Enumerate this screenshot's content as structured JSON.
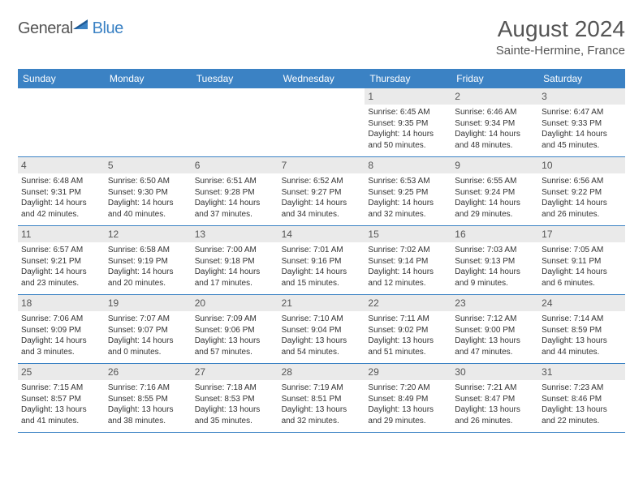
{
  "logo": {
    "text_general": "General",
    "text_blue": "Blue"
  },
  "title": "August 2024",
  "subtitle": "Sainte-Hermine, France",
  "colors": {
    "header_bg": "#3b82c4",
    "day_number_bg": "#eaeaea",
    "text_gray": "#555555",
    "text_dark": "#333333",
    "border": "#3b82c4",
    "logo_blue": "#3b82c4"
  },
  "day_names": [
    "Sunday",
    "Monday",
    "Tuesday",
    "Wednesday",
    "Thursday",
    "Friday",
    "Saturday"
  ],
  "weeks": [
    [
      null,
      null,
      null,
      null,
      {
        "n": "1",
        "sr": "6:45 AM",
        "ss": "9:35 PM",
        "dl": "14 hours and 50 minutes."
      },
      {
        "n": "2",
        "sr": "6:46 AM",
        "ss": "9:34 PM",
        "dl": "14 hours and 48 minutes."
      },
      {
        "n": "3",
        "sr": "6:47 AM",
        "ss": "9:33 PM",
        "dl": "14 hours and 45 minutes."
      }
    ],
    [
      {
        "n": "4",
        "sr": "6:48 AM",
        "ss": "9:31 PM",
        "dl": "14 hours and 42 minutes."
      },
      {
        "n": "5",
        "sr": "6:50 AM",
        "ss": "9:30 PM",
        "dl": "14 hours and 40 minutes."
      },
      {
        "n": "6",
        "sr": "6:51 AM",
        "ss": "9:28 PM",
        "dl": "14 hours and 37 minutes."
      },
      {
        "n": "7",
        "sr": "6:52 AM",
        "ss": "9:27 PM",
        "dl": "14 hours and 34 minutes."
      },
      {
        "n": "8",
        "sr": "6:53 AM",
        "ss": "9:25 PM",
        "dl": "14 hours and 32 minutes."
      },
      {
        "n": "9",
        "sr": "6:55 AM",
        "ss": "9:24 PM",
        "dl": "14 hours and 29 minutes."
      },
      {
        "n": "10",
        "sr": "6:56 AM",
        "ss": "9:22 PM",
        "dl": "14 hours and 26 minutes."
      }
    ],
    [
      {
        "n": "11",
        "sr": "6:57 AM",
        "ss": "9:21 PM",
        "dl": "14 hours and 23 minutes."
      },
      {
        "n": "12",
        "sr": "6:58 AM",
        "ss": "9:19 PM",
        "dl": "14 hours and 20 minutes."
      },
      {
        "n": "13",
        "sr": "7:00 AM",
        "ss": "9:18 PM",
        "dl": "14 hours and 17 minutes."
      },
      {
        "n": "14",
        "sr": "7:01 AM",
        "ss": "9:16 PM",
        "dl": "14 hours and 15 minutes."
      },
      {
        "n": "15",
        "sr": "7:02 AM",
        "ss": "9:14 PM",
        "dl": "14 hours and 12 minutes."
      },
      {
        "n": "16",
        "sr": "7:03 AM",
        "ss": "9:13 PM",
        "dl": "14 hours and 9 minutes."
      },
      {
        "n": "17",
        "sr": "7:05 AM",
        "ss": "9:11 PM",
        "dl": "14 hours and 6 minutes."
      }
    ],
    [
      {
        "n": "18",
        "sr": "7:06 AM",
        "ss": "9:09 PM",
        "dl": "14 hours and 3 minutes."
      },
      {
        "n": "19",
        "sr": "7:07 AM",
        "ss": "9:07 PM",
        "dl": "14 hours and 0 minutes."
      },
      {
        "n": "20",
        "sr": "7:09 AM",
        "ss": "9:06 PM",
        "dl": "13 hours and 57 minutes."
      },
      {
        "n": "21",
        "sr": "7:10 AM",
        "ss": "9:04 PM",
        "dl": "13 hours and 54 minutes."
      },
      {
        "n": "22",
        "sr": "7:11 AM",
        "ss": "9:02 PM",
        "dl": "13 hours and 51 minutes."
      },
      {
        "n": "23",
        "sr": "7:12 AM",
        "ss": "9:00 PM",
        "dl": "13 hours and 47 minutes."
      },
      {
        "n": "24",
        "sr": "7:14 AM",
        "ss": "8:59 PM",
        "dl": "13 hours and 44 minutes."
      }
    ],
    [
      {
        "n": "25",
        "sr": "7:15 AM",
        "ss": "8:57 PM",
        "dl": "13 hours and 41 minutes."
      },
      {
        "n": "26",
        "sr": "7:16 AM",
        "ss": "8:55 PM",
        "dl": "13 hours and 38 minutes."
      },
      {
        "n": "27",
        "sr": "7:18 AM",
        "ss": "8:53 PM",
        "dl": "13 hours and 35 minutes."
      },
      {
        "n": "28",
        "sr": "7:19 AM",
        "ss": "8:51 PM",
        "dl": "13 hours and 32 minutes."
      },
      {
        "n": "29",
        "sr": "7:20 AM",
        "ss": "8:49 PM",
        "dl": "13 hours and 29 minutes."
      },
      {
        "n": "30",
        "sr": "7:21 AM",
        "ss": "8:47 PM",
        "dl": "13 hours and 26 minutes."
      },
      {
        "n": "31",
        "sr": "7:23 AM",
        "ss": "8:46 PM",
        "dl": "13 hours and 22 minutes."
      }
    ]
  ],
  "labels": {
    "sunrise": "Sunrise:",
    "sunset": "Sunset:",
    "daylight": "Daylight:"
  }
}
